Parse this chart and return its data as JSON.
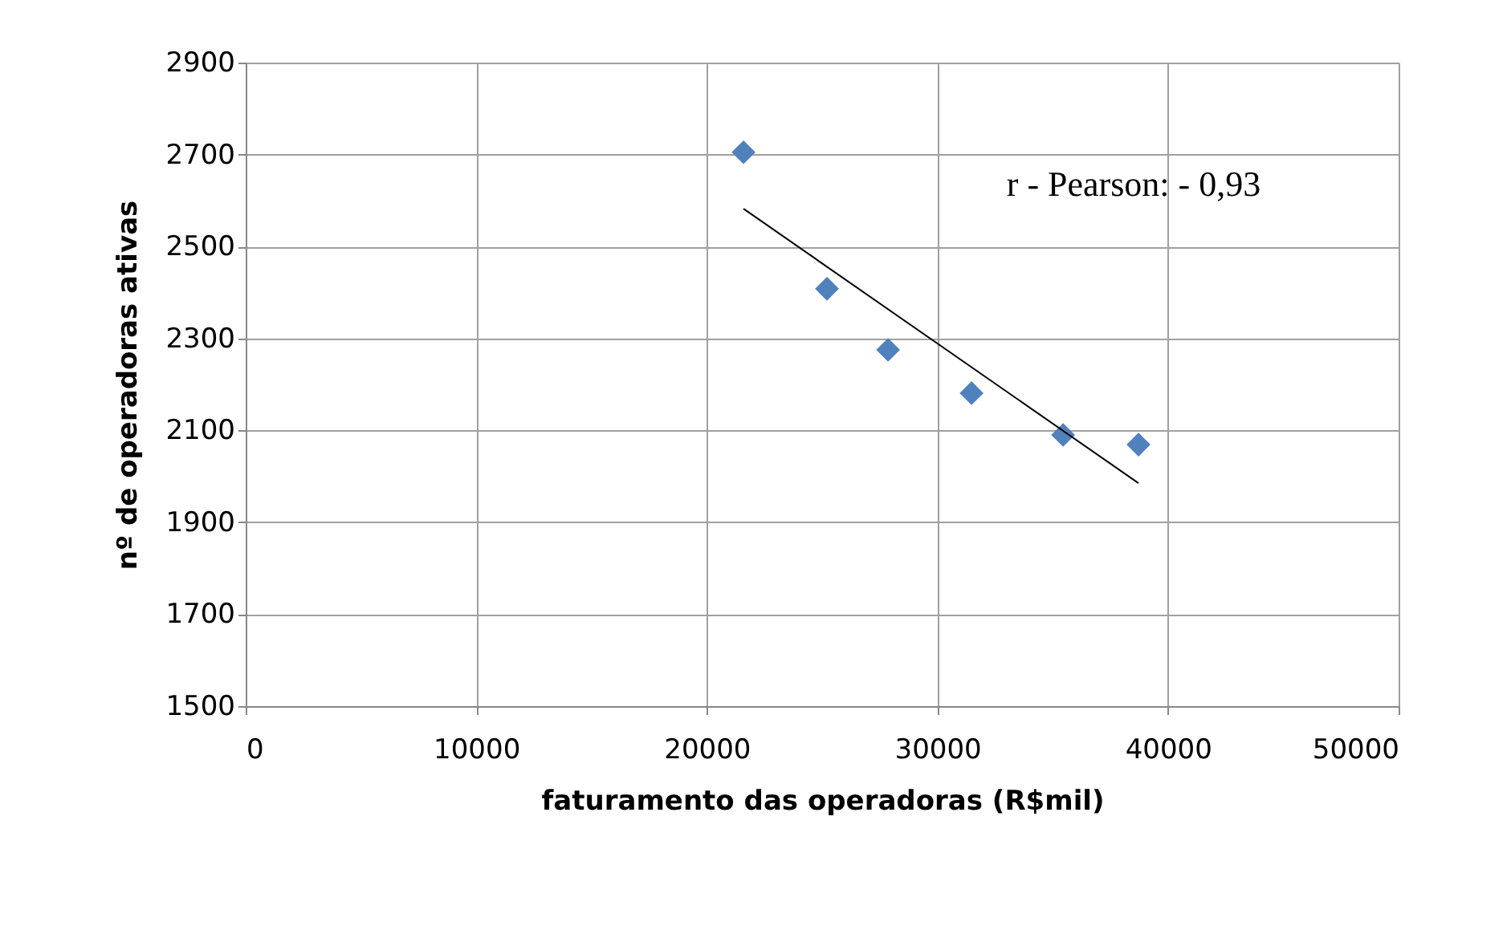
{
  "chart_data": {
    "type": "scatter",
    "xlabel": "faturamento das operadoras  (R$mil)",
    "ylabel": "nº de operadoras ativas",
    "x": [
      21590,
      25210,
      27860,
      31480,
      35450,
      38720
    ],
    "series": [
      {
        "type": "scatter",
        "color": "#4f81bd",
        "values": [
          2705,
          2408,
          2275,
          2181,
          2090,
          2069
        ],
        "marker": "diamond"
      },
      {
        "type": "line",
        "color": "#000000",
        "x": [
          21590,
          38720
        ],
        "values": [
          2582,
          1985
        ],
        "line_style": "solid"
      }
    ],
    "annotations": [
      "r - Pearson: - 0,93"
    ],
    "xlim": [
      0,
      50000
    ],
    "xticks": [
      0,
      10000,
      20000,
      30000,
      40000,
      50000
    ],
    "ylim": [
      1500,
      2900
    ],
    "yticks": [
      1500,
      1700,
      1900,
      2100,
      2300,
      2500,
      2700,
      2900
    ],
    "grid": true
  }
}
